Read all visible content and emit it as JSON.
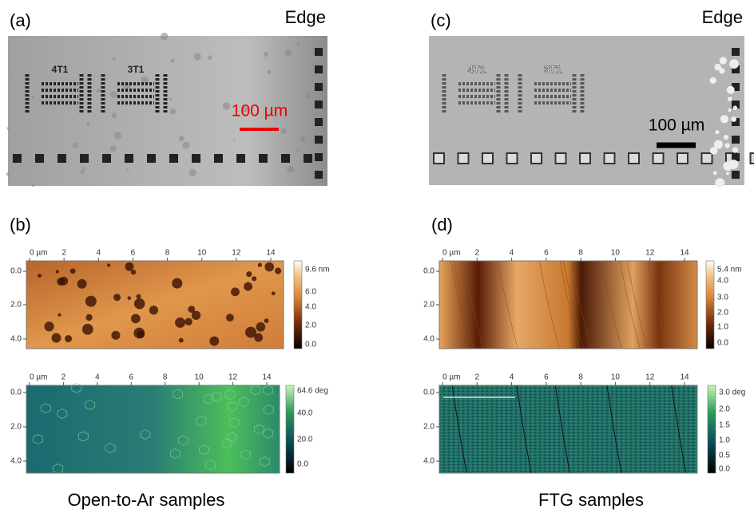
{
  "panels": {
    "a": {
      "label": "(a)",
      "edge": "Edge",
      "scale_bar": "100 µm",
      "markers": [
        "4T1",
        "3T1"
      ]
    },
    "c": {
      "label": "(c)",
      "edge": "Edge",
      "scale_bar": "100 µm",
      "markers": [
        "4T1",
        "3T1"
      ]
    },
    "b": {
      "label": "(b)",
      "maps": [
        {
          "x_ticks": [
            "0 µm",
            "2",
            "4",
            "6",
            "8",
            "10",
            "12",
            "14"
          ],
          "y_ticks": [
            "0.0",
            "2.0",
            "4.0"
          ],
          "colorbar_ticks": [
            "9.6 nm",
            "6.0",
            "4.0",
            "2.0",
            "0.0"
          ]
        },
        {
          "x_ticks": [
            "0 µm",
            "2",
            "4",
            "6",
            "8",
            "10",
            "12",
            "14"
          ],
          "y_ticks": [
            "0.0",
            "2.0",
            "4.0"
          ],
          "colorbar_ticks": [
            "64.6 deg",
            "40.0",
            "20.0",
            "0.0"
          ]
        }
      ]
    },
    "d": {
      "label": "(d)",
      "maps": [
        {
          "x_ticks": [
            "0 µm",
            "2",
            "4",
            "6",
            "8",
            "10",
            "12",
            "14"
          ],
          "y_ticks": [
            "0.0",
            "2.0",
            "4.0"
          ],
          "colorbar_ticks": [
            "5.4 nm",
            "4.0",
            "3.0",
            "2.0",
            "1.0",
            "0.0"
          ]
        },
        {
          "x_ticks": [
            "0 µm",
            "2",
            "4",
            "6",
            "8",
            "10",
            "12",
            "14"
          ],
          "y_ticks": [
            "0.0",
            "2.0",
            "4.0"
          ],
          "colorbar_ticks": [
            "3.0 deg",
            "2.0",
            "1.5",
            "1.0",
            "0.5",
            "0.0"
          ]
        }
      ]
    }
  },
  "captions": [
    "Open-to-Ar samples",
    "FTG samples"
  ]
}
